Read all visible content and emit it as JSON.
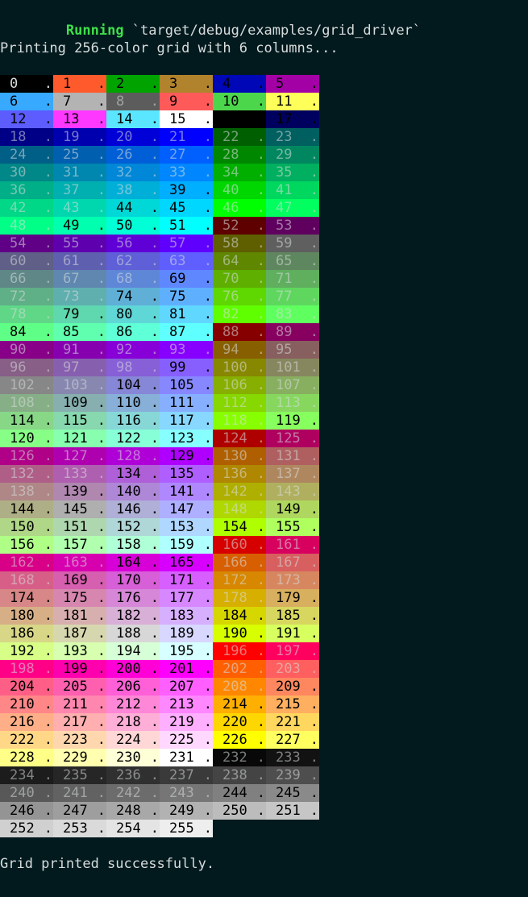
{
  "terminal": {
    "running_label": "Running",
    "running_path": " `target/debug/examples/grid_driver`",
    "intro": "Printing 256-color grid with 6 columns...",
    "footer": "Grid printed successfully.",
    "columns": 6,
    "cell_suffix": ".",
    "colors": {
      "background": "#021a1e",
      "foreground": "#d7dcdc",
      "running": "#3ee04a"
    },
    "base_palette": [
      "#000000",
      "#ff5a2c",
      "#00a300",
      "#b0832c",
      "#0007b7",
      "#a300a6",
      "#37a9ff",
      "#b3b3b3",
      "#5c5c5c",
      "#ff5a5a",
      "#4cd64c",
      "#ffff5a",
      "#5c5cff",
      "#ff38ff",
      "#5ae6ff",
      "#ffffff"
    ],
    "dim_text_indices": [
      8,
      18,
      19,
      20,
      21,
      22,
      23,
      24,
      25,
      26,
      27,
      28,
      29,
      30,
      31,
      32,
      33,
      34,
      35,
      36,
      37,
      38,
      40,
      41,
      42,
      43,
      46,
      47,
      48,
      52,
      53,
      54,
      55,
      56,
      57,
      58,
      59,
      60,
      61,
      62,
      63,
      64,
      65,
      66,
      67,
      68,
      70,
      71,
      72,
      73,
      76,
      77,
      78,
      82,
      83,
      88,
      89,
      90,
      91,
      92,
      93,
      94,
      95,
      96,
      97,
      98,
      100,
      101,
      102,
      103,
      106,
      107,
      108,
      112,
      113,
      118,
      124,
      125,
      126,
      127,
      128,
      130,
      131,
      132,
      133,
      136,
      137,
      138,
      142,
      143,
      148,
      160,
      161,
      162,
      163,
      166,
      167,
      168,
      172,
      173,
      178,
      196,
      197,
      198,
      202,
      203,
      208,
      232,
      233,
      234,
      235,
      236,
      237,
      238,
      239,
      240,
      241,
      242,
      243
    ],
    "cell_count": 256
  }
}
